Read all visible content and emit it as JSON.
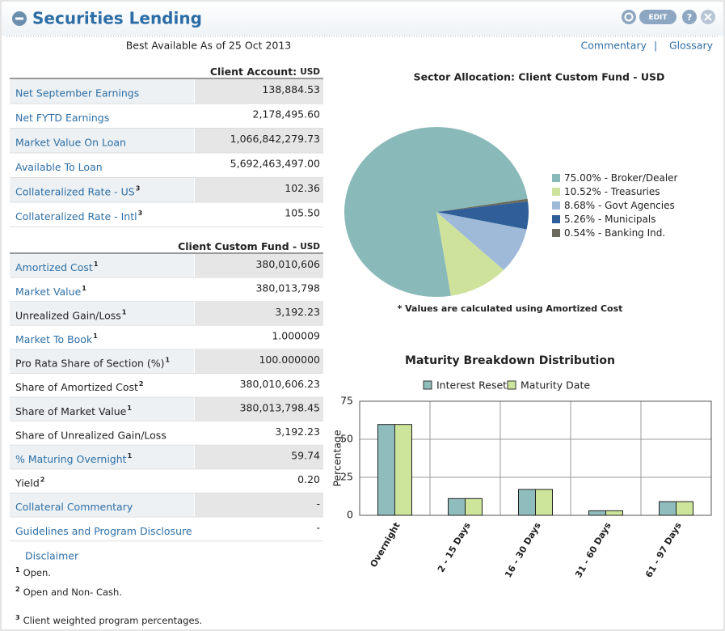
{
  "header": {
    "title": "Securities Lending",
    "edit_button": "EDIT",
    "as_of": "Best Available As of 25 Oct 2013",
    "links": [
      "Commentary",
      "Glossary"
    ]
  },
  "account_table": {
    "title": "Client Account:",
    "currency": "USD",
    "rows": [
      {
        "label": "Net September Earnings",
        "value": "138,884.53",
        "link": true
      },
      {
        "label": "Net FYTD Earnings",
        "value": "2,178,495.60",
        "link": true
      },
      {
        "label": "Market Value On Loan",
        "value": "1,066,842,279.73",
        "link": true
      },
      {
        "label": "Available To Loan",
        "value": "5,692,463,497.00",
        "link": true
      },
      {
        "label": "Collateralized Rate - US",
        "sup": "3",
        "value": "102.36",
        "link": true
      },
      {
        "label": "Collateralized Rate - Intl",
        "sup": "3",
        "value": "105.50",
        "link": true
      }
    ]
  },
  "fund_table": {
    "title": "Client Custom Fund -",
    "currency": "USD",
    "rows": [
      {
        "label": "Amortized Cost",
        "sup": "1",
        "value": "380,010,606",
        "link": true
      },
      {
        "label": "Market Value",
        "sup": "1",
        "value": "380,013,798",
        "link": true
      },
      {
        "label": "Unrealized Gain/Loss",
        "sup": "1",
        "value": "3,192.23",
        "link": false
      },
      {
        "label": "Market To Book",
        "sup": "1",
        "value": "1.000009",
        "link": true
      },
      {
        "label": "Pro Rata Share of Section (%)",
        "sup": "1",
        "value": "100.000000",
        "link": false
      },
      {
        "label": "Share of Amortized Cost",
        "sup": "2",
        "value": "380,010,606.23",
        "link": false
      },
      {
        "label": "Share of Market Value",
        "sup": "1",
        "value": "380,013,798.45",
        "link": false
      },
      {
        "label": "Share of Unrealized Gain/Loss",
        "value": "3,192.23",
        "link": false
      },
      {
        "label": "% Maturing Overnight",
        "sup": "1",
        "value": "59.74",
        "link": true
      },
      {
        "label": "Yield",
        "sup": "2",
        "value": "0.20",
        "link": false
      },
      {
        "label": "Collateral Commentary",
        "value": "-",
        "link": true
      },
      {
        "label": "Guidelines and Program Disclosure",
        "value": "-",
        "link": true
      }
    ]
  },
  "footnotes": {
    "disclaimer": "Disclaimer",
    "notes": [
      {
        "mark": "1",
        "text": "Open."
      },
      {
        "mark": "2",
        "text": "Open and Non- Cash."
      },
      {
        "mark": "3",
        "text": "Client weighted program percentages."
      }
    ]
  },
  "chart_data": [
    {
      "type": "pie",
      "title": "Sector Allocation: Client Custom Fund - USD",
      "categories": [
        "Broker/Dealer",
        "Treasuries",
        "Govt Agencies",
        "Municipals",
        "Banking Ind."
      ],
      "values": [
        75.0,
        10.52,
        8.68,
        5.26,
        0.54
      ],
      "value_labels": [
        "75.00%",
        "10.52%",
        "8.68%",
        "5.26%",
        "0.54%"
      ],
      "colors": [
        "#8ab9b9",
        "#cfe29b",
        "#9ebad8",
        "#2f5e99",
        "#6b6a5c"
      ],
      "note": "* Values are calculated using Amortized Cost"
    },
    {
      "type": "bar",
      "title": "Maturity Breakdown Distribution",
      "y_label": "Percentage",
      "categories": [
        "Overnight",
        "2 - 15 Days",
        "16 - 30 Days",
        "31 - 60 Days",
        "61 - 97 Days"
      ],
      "series": [
        {
          "name": "Interest Reset",
          "color": "#8fbcbc",
          "values": [
            59.74,
            11,
            17,
            3,
            9
          ]
        },
        {
          "name": "Maturity Date",
          "color": "#cde49b",
          "values": [
            59.74,
            11,
            17,
            3,
            9
          ]
        }
      ],
      "ylim": [
        0,
        75
      ],
      "yticks": [
        0,
        25,
        50,
        75
      ],
      "grid": true,
      "legend": "top"
    }
  ]
}
